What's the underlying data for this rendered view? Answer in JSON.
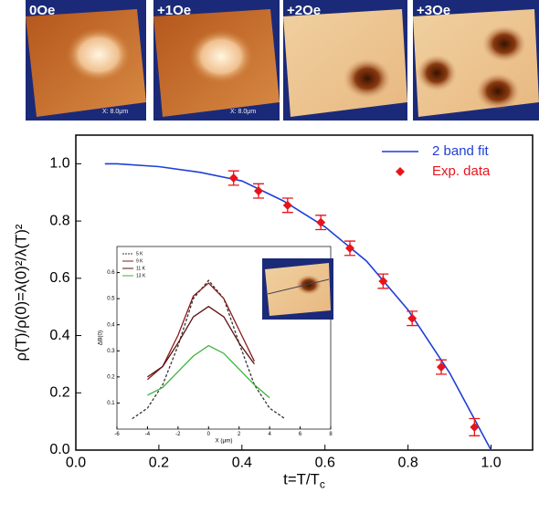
{
  "images": [
    {
      "label": "0Oe",
      "scale": "X: 8.0μm"
    },
    {
      "label": "+1Oe",
      "scale": "X: 8.0μm"
    },
    {
      "label": "+2Oe"
    },
    {
      "label": "+3Oe"
    }
  ],
  "chart_data": [
    {
      "type": "line",
      "x_label": {
        "text": "t=T/T",
        "subscript": "c"
      },
      "y_label": "ρ(T)/ρ(0)=λ(0)²/λ(T)²",
      "xlim": [
        0,
        1.1
      ],
      "ylim": [
        0,
        1.1
      ],
      "xticks": [
        {
          "value": 0,
          "label": "0.0"
        },
        0.2,
        0.4,
        0.6,
        0.8,
        {
          "value": 1,
          "label": "1.0"
        }
      ],
      "yticks": [
        {
          "value": 0,
          "label": "0.0"
        },
        0.2,
        0.4,
        0.6,
        0.8,
        {
          "value": 1,
          "label": "1.0"
        }
      ],
      "legend": "upper-right",
      "series": [
        {
          "name": "2 band fit",
          "type": "line",
          "color": "#1f3fd6",
          "x": [
            0.07,
            0.1,
            0.2,
            0.3,
            0.4,
            0.5,
            0.6,
            0.7,
            0.8,
            0.9,
            1.0
          ],
          "values": [
            1.0,
            1.0,
            0.99,
            0.97,
            0.94,
            0.87,
            0.78,
            0.66,
            0.49,
            0.27,
            0.0
          ]
        },
        {
          "name": "Exp. data",
          "type": "scatter",
          "color": "#e8141b",
          "x": [
            0.38,
            0.44,
            0.51,
            0.59,
            0.66,
            0.74,
            0.81,
            0.88,
            0.96
          ],
          "values": [
            0.95,
            0.905,
            0.855,
            0.795,
            0.705,
            0.59,
            0.46,
            0.29,
            0.08
          ],
          "errors": [
            0.025,
            0.025,
            0.025,
            0.025,
            0.025,
            0.025,
            0.025,
            0.025,
            0.03
          ]
        }
      ]
    },
    {
      "type": "line",
      "x_label": {
        "text": "X (μm)"
      },
      "y_label": "ΔB(0)",
      "xlim": [
        -6,
        8
      ],
      "ylim": [
        0,
        0.7
      ],
      "xticks": [
        -6,
        -4,
        -2,
        0,
        2,
        4,
        6,
        8
      ],
      "yticks": [
        0.1,
        0.2,
        0.3,
        0.4,
        0.5,
        0.6
      ],
      "legend": "upper-left",
      "x": [
        -5,
        -4,
        -3,
        -2,
        -1,
        0,
        1,
        2,
        3,
        4,
        5
      ],
      "series": [
        {
          "name": "5 K",
          "type": "line",
          "color": "#333333",
          "dash": true,
          "values": [
            0.04,
            0.08,
            0.17,
            0.32,
            0.5,
            0.57,
            0.5,
            0.33,
            0.17,
            0.08,
            0.04
          ]
        },
        {
          "name": "9 K",
          "type": "line",
          "color": "#8b1a1a",
          "values": [
            null,
            0.19,
            0.24,
            0.36,
            0.51,
            0.56,
            0.5,
            0.38,
            0.26,
            null,
            null
          ]
        },
        {
          "name": "11 K",
          "type": "line",
          "color": "#5a1010",
          "values": [
            null,
            0.2,
            0.24,
            0.33,
            0.43,
            0.47,
            0.43,
            0.33,
            0.25,
            null,
            null
          ]
        },
        {
          "name": "13 K",
          "type": "line",
          "color": "#3cb33c",
          "values": [
            null,
            0.13,
            0.16,
            0.22,
            0.28,
            0.32,
            0.29,
            0.23,
            0.17,
            0.12,
            null
          ]
        }
      ]
    }
  ]
}
